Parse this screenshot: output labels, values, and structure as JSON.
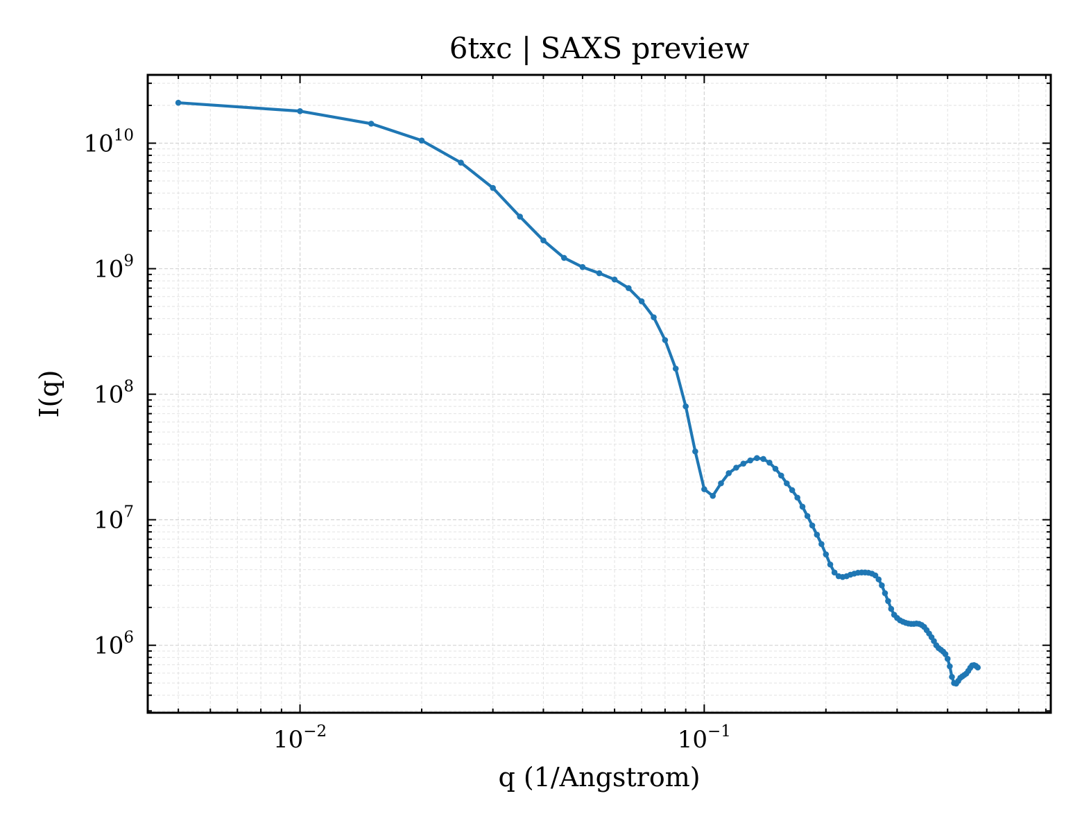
{
  "chart_data": {
    "type": "line",
    "title": "6txc | SAXS preview",
    "xlabel": "q (1/Angstrom)",
    "ylabel": "I(q)",
    "xscale": "log",
    "yscale": "log",
    "xlim": [
      0.0042,
      0.72
    ],
    "ylim": [
      290000,
      35000000000
    ],
    "grid": true,
    "legend": "none",
    "line_color": "#1f77b4",
    "x_ticks": [
      {
        "value": 0.01,
        "base": "10",
        "exp": "−2"
      },
      {
        "value": 0.1,
        "base": "10",
        "exp": "−1"
      }
    ],
    "y_ticks": [
      {
        "value": 1000000,
        "base": "10",
        "exp": "6"
      },
      {
        "value": 10000000,
        "base": "10",
        "exp": "7"
      },
      {
        "value": 100000000,
        "base": "10",
        "exp": "8"
      },
      {
        "value": 1000000000,
        "base": "10",
        "exp": "9"
      },
      {
        "value": 10000000000,
        "base": "10",
        "exp": "10"
      }
    ],
    "series": [
      {
        "points": [
          [
            0.005,
            21000000000.0
          ],
          [
            0.01,
            18000000000.0
          ],
          [
            0.015,
            14300000000.0
          ],
          [
            0.02,
            10500000000.0
          ],
          [
            0.025,
            7000000000.0
          ],
          [
            0.03,
            4400000000.0
          ],
          [
            0.035,
            2600000000.0
          ],
          [
            0.04,
            1680000000.0
          ],
          [
            0.045,
            1220000000.0
          ],
          [
            0.05,
            1030000000.0
          ],
          [
            0.055,
            920000000.0
          ],
          [
            0.06,
            820000000.0
          ],
          [
            0.065,
            700000000.0
          ],
          [
            0.07,
            550000000.0
          ],
          [
            0.075,
            410000000.0
          ],
          [
            0.08,
            270000000.0
          ],
          [
            0.085,
            160000000.0
          ],
          [
            0.09,
            80000000.0
          ],
          [
            0.095,
            35000000.0
          ],
          [
            0.1,
            17500000.0
          ],
          [
            0.105,
            15500000.0
          ],
          [
            0.11,
            19500000.0
          ],
          [
            0.115,
            23500000.0
          ],
          [
            0.12,
            26000000.0
          ],
          [
            0.125,
            28000000.0
          ],
          [
            0.13,
            29700000.0
          ],
          [
            0.135,
            31000000.0
          ],
          [
            0.14,
            30500000.0
          ],
          [
            0.145,
            28500000.0
          ],
          [
            0.15,
            25500000.0
          ],
          [
            0.155,
            22500000.0
          ],
          [
            0.16,
            19500000.0
          ],
          [
            0.165,
            17200000.0
          ],
          [
            0.17,
            15000000.0
          ],
          [
            0.175,
            12700000.0
          ],
          [
            0.18,
            10700000.0
          ],
          [
            0.185,
            9000000.0
          ],
          [
            0.19,
            7600000.0
          ],
          [
            0.195,
            6400000.0
          ],
          [
            0.2,
            5300000.0
          ],
          [
            0.205,
            4400000.0
          ],
          [
            0.21,
            3800000.0
          ],
          [
            0.215,
            3550000.0
          ],
          [
            0.22,
            3500000.0
          ],
          [
            0.225,
            3550000.0
          ],
          [
            0.23,
            3650000.0
          ],
          [
            0.235,
            3720000.0
          ],
          [
            0.24,
            3780000.0
          ],
          [
            0.245,
            3800000.0
          ],
          [
            0.25,
            3800000.0
          ],
          [
            0.255,
            3780000.0
          ],
          [
            0.26,
            3720000.0
          ],
          [
            0.265,
            3600000.0
          ],
          [
            0.27,
            3350000.0
          ],
          [
            0.275,
            3000000.0
          ],
          [
            0.28,
            2600000.0
          ],
          [
            0.285,
            2250000.0
          ],
          [
            0.29,
            1950000.0
          ],
          [
            0.295,
            1750000.0
          ],
          [
            0.3,
            1650000.0
          ],
          [
            0.305,
            1580000.0
          ],
          [
            0.31,
            1540000.0
          ],
          [
            0.315,
            1510000.0
          ],
          [
            0.32,
            1490000.0
          ],
          [
            0.325,
            1480000.0
          ],
          [
            0.33,
            1480000.0
          ],
          [
            0.335,
            1490000.0
          ],
          [
            0.34,
            1480000.0
          ],
          [
            0.345,
            1450000.0
          ],
          [
            0.35,
            1400000.0
          ],
          [
            0.355,
            1320000.0
          ],
          [
            0.36,
            1240000.0
          ],
          [
            0.365,
            1160000.0
          ],
          [
            0.37,
            1080000.0
          ],
          [
            0.375,
            1000000.0
          ],
          [
            0.38,
            950000.0
          ],
          [
            0.385,
            920000.0
          ],
          [
            0.39,
            890000.0
          ],
          [
            0.395,
            850000.0
          ],
          [
            0.4,
            780000.0
          ],
          [
            0.405,
            680000.0
          ],
          [
            0.41,
            560000.0
          ],
          [
            0.415,
            500000.0
          ],
          [
            0.42,
            495000.0
          ],
          [
            0.425,
            520000.0
          ],
          [
            0.43,
            550000.0
          ],
          [
            0.435,
            565000.0
          ],
          [
            0.44,
            580000.0
          ],
          [
            0.445,
            595000.0
          ],
          [
            0.45,
            625000.0
          ],
          [
            0.455,
            660000.0
          ],
          [
            0.46,
            690000.0
          ],
          [
            0.465,
            695000.0
          ],
          [
            0.47,
            685000.0
          ],
          [
            0.475,
            665000.0
          ]
        ]
      }
    ]
  }
}
